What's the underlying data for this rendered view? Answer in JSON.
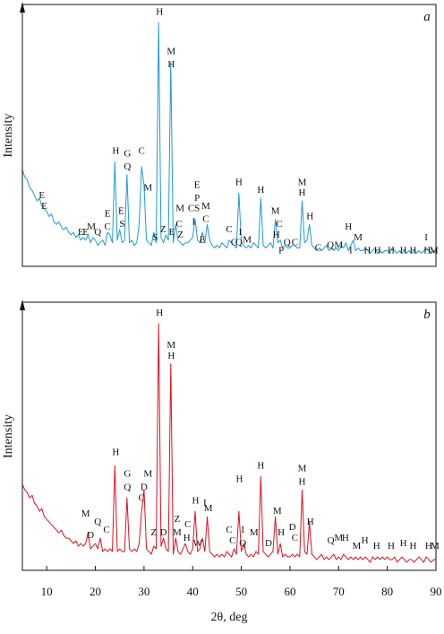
{
  "chart_data": [
    {
      "type": "line",
      "label": "a",
      "ylabel": "Intensity",
      "xlim": [
        5,
        90
      ],
      "ylim": [
        0,
        100
      ],
      "color": "#1e9bd7",
      "x": [
        5,
        5.5,
        6,
        6.5,
        7,
        7.5,
        8,
        8.5,
        9,
        9.5,
        10,
        10.5,
        11,
        11.5,
        12,
        12.5,
        13,
        13.5,
        14,
        14.5,
        15,
        15.5,
        16,
        16.5,
        17,
        17.5,
        18,
        18.5,
        19,
        19.5,
        20,
        20.5,
        21,
        21.5,
        22,
        22.5,
        23,
        23.5,
        24,
        24.5,
        25,
        25.5,
        26,
        26.5,
        27,
        27.5,
        28,
        28.5,
        29,
        29.5,
        30,
        30.5,
        31,
        31.5,
        32,
        32.5,
        33,
        33.5,
        34,
        34.5,
        35,
        35.5,
        36,
        36.5,
        37,
        37.5,
        38,
        38.5,
        39,
        39.5,
        40,
        40.5,
        41,
        41.5,
        42,
        42.5,
        43,
        43.5,
        44,
        44.5,
        45,
        45.5,
        46,
        46.5,
        47,
        47.5,
        48,
        48.5,
        49,
        49.5,
        50,
        50.5,
        51,
        51.5,
        52,
        52.5,
        53,
        53.5,
        54,
        54.5,
        55,
        55.5,
        56,
        56.5,
        57,
        57.5,
        58,
        58.5,
        59,
        59.5,
        60,
        60.5,
        61,
        61.5,
        62,
        62.5,
        63,
        63.5,
        64,
        64.5,
        65,
        65.5,
        66,
        66.5,
        67,
        67.5,
        68,
        68.5,
        69,
        69.5,
        70,
        70.5,
        71,
        71.5,
        72,
        72.5,
        73,
        73.5,
        74,
        74.5,
        75,
        75.5,
        76,
        76.5,
        77,
        77.5,
        78,
        78.5,
        79,
        79.5,
        80,
        80.5,
        81,
        81.5,
        82,
        82.5,
        83,
        83.5,
        84,
        84.5,
        85,
        85.5,
        86,
        86.5,
        87,
        87.5,
        88,
        88.5,
        89,
        89.5,
        90
      ],
      "values": [
        37,
        34,
        33,
        30,
        29,
        27,
        25,
        26,
        23,
        22,
        21,
        19,
        20,
        17,
        16,
        17,
        15,
        14,
        15,
        13,
        12,
        13,
        11,
        12,
        10,
        11,
        10,
        12,
        9,
        11,
        10,
        8,
        9,
        10,
        8,
        13,
        12,
        9,
        40,
        10,
        14,
        9,
        10,
        35,
        9,
        10,
        8,
        9,
        16,
        38,
        31,
        10,
        9,
        8,
        13,
        9,
        93,
        11,
        9,
        12,
        10,
        78,
        9,
        16,
        10,
        9,
        8,
        9,
        9,
        10,
        11,
        18,
        10,
        9,
        13,
        9,
        16,
        10,
        8,
        7,
        8,
        7,
        9,
        8,
        7,
        10,
        9,
        8,
        7,
        28,
        9,
        8,
        7,
        8,
        7,
        9,
        8,
        7,
        26,
        8,
        7,
        8,
        9,
        7,
        18,
        9,
        10,
        7,
        8,
        7,
        7,
        8,
        8,
        7,
        7,
        25,
        9,
        10,
        16,
        8,
        7,
        6,
        7,
        6,
        7,
        8,
        6,
        7,
        6,
        7,
        6,
        8,
        7,
        9,
        6,
        8,
        10,
        6,
        7,
        6,
        6,
        7,
        6,
        5,
        6,
        7,
        5,
        6,
        5,
        6,
        6,
        5,
        7,
        6,
        5,
        6,
        5,
        6,
        5,
        6,
        5,
        6,
        5,
        6,
        5,
        6,
        7,
        6,
        5,
        6,
        5
      ],
      "annotations": [
        {
          "text": "H",
          "x": 33.2,
          "y": 96
        },
        {
          "text": "M",
          "x": 35.6,
          "y": 81
        },
        {
          "text": "H",
          "x": 35.6,
          "y": 76
        },
        {
          "text": "E",
          "x": 9,
          "y": 26
        },
        {
          "text": "E",
          "x": 9.5,
          "y": 22
        },
        {
          "text": "C",
          "x": 29.5,
          "y": 43
        },
        {
          "text": "M",
          "x": 30.8,
          "y": 29
        },
        {
          "text": "H",
          "x": 24.2,
          "y": 43
        },
        {
          "text": "G",
          "x": 26.6,
          "y": 42
        },
        {
          "text": "Q",
          "x": 26.6,
          "y": 37
        },
        {
          "text": "E",
          "x": 22.5,
          "y": 19
        },
        {
          "text": "C",
          "x": 22.5,
          "y": 14
        },
        {
          "text": "E",
          "x": 25.3,
          "y": 20
        },
        {
          "text": "S",
          "x": 25.5,
          "y": 15
        },
        {
          "text": "E",
          "x": 17,
          "y": 12
        },
        {
          "text": "E",
          "x": 18,
          "y": 12
        },
        {
          "text": "M",
          "x": 19.2,
          "y": 14
        },
        {
          "text": "Q",
          "x": 20.5,
          "y": 12
        },
        {
          "text": "S",
          "x": 32.3,
          "y": 10
        },
        {
          "text": "Z",
          "x": 33.9,
          "y": 13
        },
        {
          "text": "E",
          "x": 35.7,
          "y": 12
        },
        {
          "text": "Z",
          "x": 37.5,
          "y": 11
        },
        {
          "text": "M",
          "x": 37.4,
          "y": 21
        },
        {
          "text": "C",
          "x": 37.2,
          "y": 15
        },
        {
          "text": "C",
          "x": 39.7,
          "y": 21
        },
        {
          "text": "I",
          "x": 40.2,
          "y": 16
        },
        {
          "text": "E",
          "x": 40.9,
          "y": 30
        },
        {
          "text": "P",
          "x": 40.9,
          "y": 25
        },
        {
          "text": "S",
          "x": 40.9,
          "y": 21
        },
        {
          "text": "M",
          "x": 42.7,
          "y": 22
        },
        {
          "text": "C",
          "x": 42.7,
          "y": 17
        },
        {
          "text": "E",
          "x": 42,
          "y": 9
        },
        {
          "text": "H",
          "x": 49.5,
          "y": 31
        },
        {
          "text": "C",
          "x": 47.5,
          "y": 13
        },
        {
          "text": "C",
          "x": 48.5,
          "y": 8
        },
        {
          "text": "I",
          "x": 49.8,
          "y": 12
        },
        {
          "text": "Q",
          "x": 49.5,
          "y": 8
        },
        {
          "text": "M",
          "x": 51.2,
          "y": 9
        },
        {
          "text": "H",
          "x": 54,
          "y": 28
        },
        {
          "text": "M",
          "x": 57,
          "y": 20
        },
        {
          "text": "C",
          "x": 57.8,
          "y": 15
        },
        {
          "text": "H",
          "x": 57.2,
          "y": 11
        },
        {
          "text": "P",
          "x": 58.2,
          "y": 5
        },
        {
          "text": "Q",
          "x": 59.4,
          "y": 8
        },
        {
          "text": "C",
          "x": 61,
          "y": 8
        },
        {
          "text": "M",
          "x": 62.5,
          "y": 31
        },
        {
          "text": "H",
          "x": 62.5,
          "y": 27
        },
        {
          "text": "H",
          "x": 64.1,
          "y": 18
        },
        {
          "text": "C",
          "x": 65.8,
          "y": 6
        },
        {
          "text": "Q",
          "x": 68.3,
          "y": 7
        },
        {
          "text": "M",
          "x": 70,
          "y": 7
        },
        {
          "text": "H",
          "x": 72,
          "y": 14
        },
        {
          "text": "I",
          "x": 72.5,
          "y": 5
        },
        {
          "text": "M",
          "x": 74,
          "y": 10
        },
        {
          "text": "H",
          "x": 75.9,
          "y": 5
        },
        {
          "text": "H",
          "x": 78,
          "y": 5
        },
        {
          "text": "H",
          "x": 80.8,
          "y": 5
        },
        {
          "text": "H",
          "x": 83.3,
          "y": 5
        },
        {
          "text": "H",
          "x": 85.3,
          "y": 5
        },
        {
          "text": "I",
          "x": 88,
          "y": 10
        },
        {
          "text": "H",
          "x": 88.2,
          "y": 5
        },
        {
          "text": "M",
          "x": 89.6,
          "y": 5
        }
      ]
    },
    {
      "type": "line",
      "label": "b",
      "ylabel": "Intensity",
      "xlabel": "2θ, deg",
      "xlim": [
        5,
        90
      ],
      "ylim": [
        0,
        100
      ],
      "color": "#e0101e",
      "xticks": [
        10,
        20,
        30,
        40,
        50,
        60,
        70,
        80,
        90
      ],
      "x": [
        5,
        5.5,
        6,
        6.5,
        7,
        7.5,
        8,
        8.5,
        9,
        9.5,
        10,
        10.5,
        11,
        11.5,
        12,
        12.5,
        13,
        13.5,
        14,
        14.5,
        15,
        15.5,
        16,
        16.5,
        17,
        17.5,
        18,
        18.5,
        19,
        19.5,
        20,
        20.5,
        21,
        21.5,
        22,
        22.5,
        23,
        23.5,
        24,
        24.5,
        25,
        25.5,
        26,
        26.5,
        27,
        27.5,
        28,
        28.5,
        29,
        29.5,
        30,
        30.5,
        31,
        31.5,
        32,
        32.5,
        33,
        33.5,
        34,
        34.5,
        35,
        35.5,
        36,
        36.5,
        37,
        37.5,
        38,
        38.5,
        39,
        39.5,
        40,
        40.5,
        41,
        41.5,
        42,
        42.5,
        43,
        43.5,
        44,
        44.5,
        45,
        45.5,
        46,
        46.5,
        47,
        47.5,
        48,
        48.5,
        49,
        49.5,
        50,
        50.5,
        51,
        51.5,
        52,
        52.5,
        53,
        53.5,
        54,
        54.5,
        55,
        55.5,
        56,
        56.5,
        57,
        57.5,
        58,
        58.5,
        59,
        59.5,
        60,
        60.5,
        61,
        61.5,
        62,
        62.5,
        63,
        63.5,
        64,
        64.5,
        65,
        65.5,
        66,
        66.5,
        67,
        67.5,
        68,
        68.5,
        69,
        69.5,
        70,
        70.5,
        71,
        71.5,
        72,
        72.5,
        73,
        73.5,
        74,
        74.5,
        75,
        75.5,
        76,
        76.5,
        77,
        77.5,
        78,
        78.5,
        79,
        79.5,
        80,
        80.5,
        81,
        81.5,
        82,
        82.5,
        83,
        83.5,
        84,
        84.5,
        85,
        85.5,
        86,
        86.5,
        87,
        87.5,
        88,
        88.5,
        89,
        89.5,
        90
      ],
      "values": [
        32,
        30,
        29,
        27,
        28,
        25,
        24,
        22,
        23,
        20,
        19,
        18,
        17,
        16,
        15,
        14,
        15,
        13,
        12,
        12,
        11,
        10,
        11,
        9,
        10,
        9,
        10,
        14,
        8,
        9,
        10,
        8,
        12,
        7,
        8,
        7,
        8,
        7,
        39,
        7,
        8,
        7,
        7,
        27,
        8,
        7,
        8,
        7,
        10,
        22,
        30,
        8,
        7,
        6,
        9,
        8,
        92,
        9,
        12,
        8,
        7,
        77,
        6,
        12,
        7,
        6,
        8,
        10,
        7,
        6,
        8,
        22,
        7,
        8,
        12,
        7,
        20,
        7,
        6,
        5,
        6,
        5,
        6,
        5,
        7,
        6,
        5,
        8,
        6,
        22,
        7,
        10,
        6,
        5,
        6,
        5,
        7,
        6,
        35,
        7,
        6,
        5,
        6,
        7,
        20,
        6,
        10,
        5,
        6,
        5,
        5,
        6,
        5,
        6,
        5,
        30,
        7,
        6,
        18,
        6,
        5,
        4,
        5,
        6,
        4,
        5,
        4,
        5,
        6,
        4,
        5,
        4,
        6,
        5,
        4,
        5,
        4,
        5,
        4,
        5,
        4,
        5,
        4,
        3,
        5,
        4,
        5,
        4,
        5,
        4,
        5,
        4,
        4,
        5,
        3,
        4,
        5,
        4,
        3,
        4,
        4,
        3,
        4,
        5,
        4,
        3,
        5,
        4,
        3,
        4,
        4
      ],
      "annotations": [
        {
          "text": "H",
          "x": 33.2,
          "y": 95
        },
        {
          "text": "M",
          "x": 35.6,
          "y": 83
        },
        {
          "text": "H",
          "x": 35.6,
          "y": 79
        },
        {
          "text": "H",
          "x": 24.2,
          "y": 43
        },
        {
          "text": "G",
          "x": 26.6,
          "y": 35
        },
        {
          "text": "Q",
          "x": 26.6,
          "y": 30
        },
        {
          "text": "M",
          "x": 30.8,
          "y": 35
        },
        {
          "text": "D",
          "x": 30,
          "y": 30
        },
        {
          "text": "C",
          "x": 29.5,
          "y": 26
        },
        {
          "text": "M",
          "x": 18,
          "y": 20
        },
        {
          "text": "D",
          "x": 19,
          "y": 12
        },
        {
          "text": "Q",
          "x": 20.5,
          "y": 17
        },
        {
          "text": "C",
          "x": 22.3,
          "y": 14
        },
        {
          "text": "Z",
          "x": 32,
          "y": 13
        },
        {
          "text": "D",
          "x": 34,
          "y": 13
        },
        {
          "text": "Z",
          "x": 36.8,
          "y": 18
        },
        {
          "text": "M",
          "x": 36.8,
          "y": 13
        },
        {
          "text": "C",
          "x": 39,
          "y": 16
        },
        {
          "text": "H",
          "x": 38.8,
          "y": 11
        },
        {
          "text": "H",
          "x": 40.6,
          "y": 25
        },
        {
          "text": "W",
          "x": 41,
          "y": 9
        },
        {
          "text": "I",
          "x": 42.5,
          "y": 24
        },
        {
          "text": "M",
          "x": 43.2,
          "y": 22
        },
        {
          "text": "H",
          "x": 49.6,
          "y": 33
        },
        {
          "text": "C",
          "x": 47.5,
          "y": 14
        },
        {
          "text": "C",
          "x": 48.2,
          "y": 10
        },
        {
          "text": "I",
          "x": 50.3,
          "y": 14
        },
        {
          "text": "Q",
          "x": 50.3,
          "y": 9
        },
        {
          "text": "M",
          "x": 52.6,
          "y": 13
        },
        {
          "text": "H",
          "x": 54,
          "y": 38
        },
        {
          "text": "D",
          "x": 55.6,
          "y": 9
        },
        {
          "text": "M",
          "x": 57.4,
          "y": 21
        },
        {
          "text": "H",
          "x": 58.2,
          "y": 13
        },
        {
          "text": "D",
          "x": 60.5,
          "y": 15
        },
        {
          "text": "C",
          "x": 61,
          "y": 11
        },
        {
          "text": "M",
          "x": 62.5,
          "y": 37
        },
        {
          "text": "H",
          "x": 62.5,
          "y": 32
        },
        {
          "text": "H",
          "x": 64.2,
          "y": 17
        },
        {
          "text": "Q",
          "x": 68.4,
          "y": 10
        },
        {
          "text": "M",
          "x": 70,
          "y": 11
        },
        {
          "text": "H",
          "x": 71.4,
          "y": 11
        },
        {
          "text": "M",
          "x": 73.7,
          "y": 8
        },
        {
          "text": "H",
          "x": 75.4,
          "y": 10
        },
        {
          "text": "H",
          "x": 77.8,
          "y": 8
        },
        {
          "text": "H",
          "x": 80.8,
          "y": 8
        },
        {
          "text": "H",
          "x": 83.3,
          "y": 9
        },
        {
          "text": "H",
          "x": 85.3,
          "y": 8
        },
        {
          "text": "H",
          "x": 88.5,
          "y": 8
        },
        {
          "text": "M",
          "x": 89.8,
          "y": 8
        }
      ]
    }
  ]
}
